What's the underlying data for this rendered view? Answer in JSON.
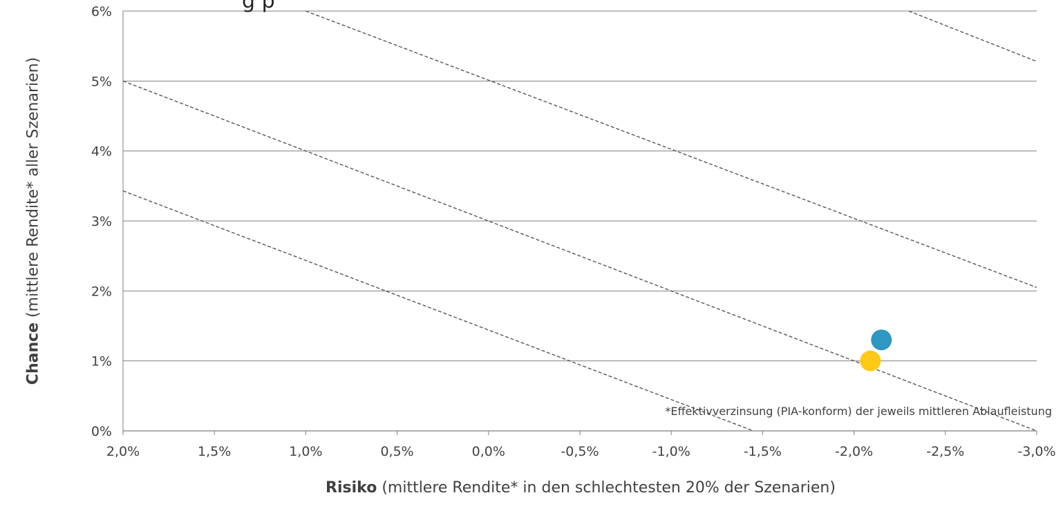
{
  "chart_data": {
    "type": "scatter",
    "title_partial": "g          p",
    "ylabel_bold": "Chance",
    "ylabel_rest": " (mittlere Rendite* aller Szenarien)",
    "xlabel_bold": "Risiko",
    "xlabel_rest": " (mittlere Rendite* in den schlechtesten 20% der Szenarien)",
    "annotation": "*Effektivverzinsung (PIA-konform) der jeweils mittleren Ablaufleistung",
    "xlim": [
      2.0,
      -3.0
    ],
    "ylim": [
      0,
      6
    ],
    "x_ticks": [
      {
        "v": 2.0,
        "label": "2,0%"
      },
      {
        "v": 1.5,
        "label": "1,5%"
      },
      {
        "v": 1.0,
        "label": "1,0%"
      },
      {
        "v": 0.5,
        "label": "0,5%"
      },
      {
        "v": 0.0,
        "label": "0,0%"
      },
      {
        "v": -0.5,
        "label": "-0,5%"
      },
      {
        "v": -1.0,
        "label": "-1,0%"
      },
      {
        "v": -1.5,
        "label": "-1,5%"
      },
      {
        "v": -2.0,
        "label": "-2,0%"
      },
      {
        "v": -2.5,
        "label": "-2,5%"
      },
      {
        "v": -3.0,
        "label": "-3,0%"
      }
    ],
    "y_ticks": [
      {
        "v": 0,
        "label": "0%"
      },
      {
        "v": 1,
        "label": "1%"
      },
      {
        "v": 2,
        "label": "2%"
      },
      {
        "v": 3,
        "label": "3%"
      },
      {
        "v": 4,
        "label": "4%"
      },
      {
        "v": 5,
        "label": "5%"
      },
      {
        "v": 6,
        "label": "6%"
      }
    ],
    "horizontal_grid": true,
    "points": [
      {
        "x": -2.15,
        "y": 1.3,
        "color": "#2E97C4"
      },
      {
        "x": -2.09,
        "y": 1.0,
        "color": "#FFC915"
      }
    ],
    "reference_lines": [
      {
        "x1": 2.0,
        "y1": 3.43,
        "x2": -1.45,
        "y2": 0.0
      },
      {
        "x1": 2.0,
        "y1": 5.0,
        "x2": -3.0,
        "y2": 0.0
      },
      {
        "x1": 1.0,
        "y1": 6.0,
        "x2": -3.0,
        "y2": 2.05
      },
      {
        "x1": -2.3,
        "y1": 6.0,
        "x2": -3.0,
        "y2": 5.28
      }
    ],
    "colors": {
      "grid": "#7f7f7f",
      "ref_line": "#555555",
      "tick_text": "#404040"
    }
  }
}
